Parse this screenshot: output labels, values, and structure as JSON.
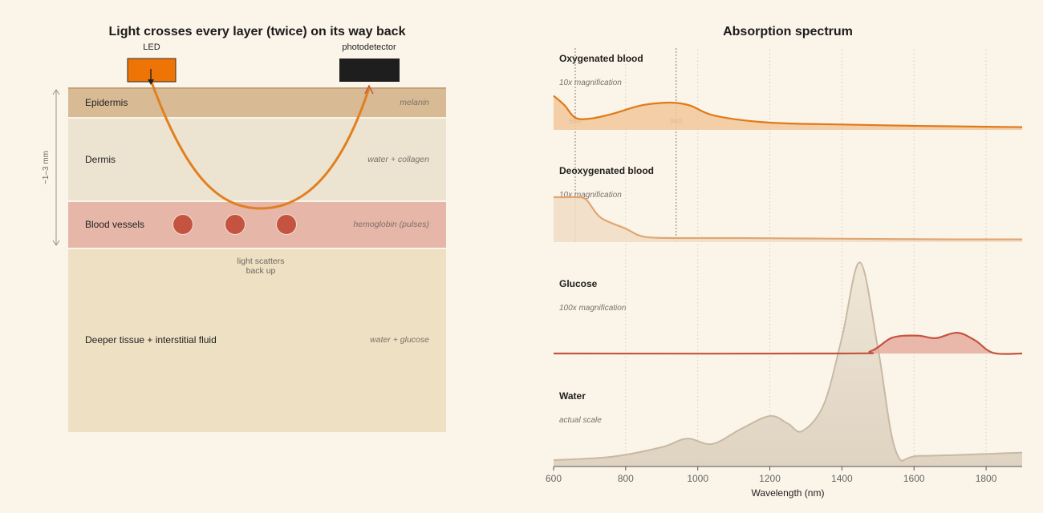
{
  "left": {
    "title": "Light crosses every layer (twice) on its way back",
    "led_label": "LED",
    "detector_label": "photodetector",
    "depth_label": "~1–3 mm",
    "scatter_note_line1": "light scatters",
    "scatter_note_line2": "back up",
    "layers": [
      {
        "name": "Epidermis",
        "sub": "melanin",
        "color": "#d8bb94"
      },
      {
        "name": "Dermis",
        "sub": "water + collagen",
        "color": "#ede3d1"
      },
      {
        "name": "Blood vessels",
        "sub": "hemoglobin (pulses)",
        "color": "#e6b6a8"
      },
      {
        "name": "Deeper tissue + interstitial fluid",
        "sub": "water + glucose",
        "color": "#ede0c3"
      }
    ],
    "colors": {
      "led": "#ee7406",
      "detector": "#1e1e1e",
      "light_path": "#e0801f",
      "vessel": "#c4543f"
    }
  },
  "right": {
    "title": "Absorption spectrum",
    "panels": [
      {
        "name": "Oxygenated blood",
        "note": "10x magnification",
        "color": "#e07a18"
      },
      {
        "name": "Deoxygenated blood",
        "note": "10x magnification",
        "color": "#e0a672"
      },
      {
        "name": "Glucose",
        "note": "100x magnification",
        "color": "#c4543f"
      },
      {
        "name": "Water",
        "note": "actual scale",
        "color": "#c9b9a4"
      }
    ],
    "markers": [
      "660",
      "940"
    ]
  },
  "chart_data": {
    "type": "area",
    "xlabel": "Wavelength (nm)",
    "xlim": [
      600,
      1900
    ],
    "xticks": [
      600,
      800,
      1000,
      1200,
      1400,
      1600,
      1800
    ],
    "series": [
      {
        "name": "Oxygenated blood",
        "x": [
          600,
          630,
          660,
          700,
          760,
          840,
          900,
          940,
          980,
          1050,
          1200,
          1400,
          1600,
          1800,
          1900
        ],
        "y": [
          0.76,
          0.55,
          0.27,
          0.25,
          0.35,
          0.54,
          0.6,
          0.6,
          0.54,
          0.31,
          0.16,
          0.12,
          0.09,
          0.07,
          0.06
        ]
      },
      {
        "name": "Deoxygenated blood",
        "x": [
          600,
          640,
          660,
          690,
          730,
          800,
          850,
          940,
          1100,
          1300,
          1500,
          1700,
          1900
        ],
        "y": [
          1.0,
          1.0,
          1.0,
          0.95,
          0.55,
          0.3,
          0.12,
          0.09,
          0.09,
          0.08,
          0.07,
          0.06,
          0.06
        ]
      },
      {
        "name": "Glucose",
        "x": [
          600,
          1400,
          1480,
          1540,
          1610,
          1660,
          1720,
          1770,
          1820,
          1900
        ],
        "y": [
          0.0,
          0.0,
          0.08,
          0.55,
          0.62,
          0.53,
          0.72,
          0.45,
          0.02,
          0.0
        ]
      },
      {
        "name": "Water",
        "x": [
          600,
          760,
          900,
          970,
          1040,
          1120,
          1200,
          1250,
          1290,
          1350,
          1400,
          1450,
          1500,
          1550,
          1620,
          1900
        ],
        "y": [
          0.06,
          0.09,
          0.18,
          0.26,
          0.21,
          0.35,
          0.47,
          0.4,
          0.33,
          0.58,
          1.2,
          1.9,
          1.1,
          0.14,
          0.1,
          0.13
        ]
      }
    ],
    "markers_nm": [
      660,
      940
    ]
  }
}
